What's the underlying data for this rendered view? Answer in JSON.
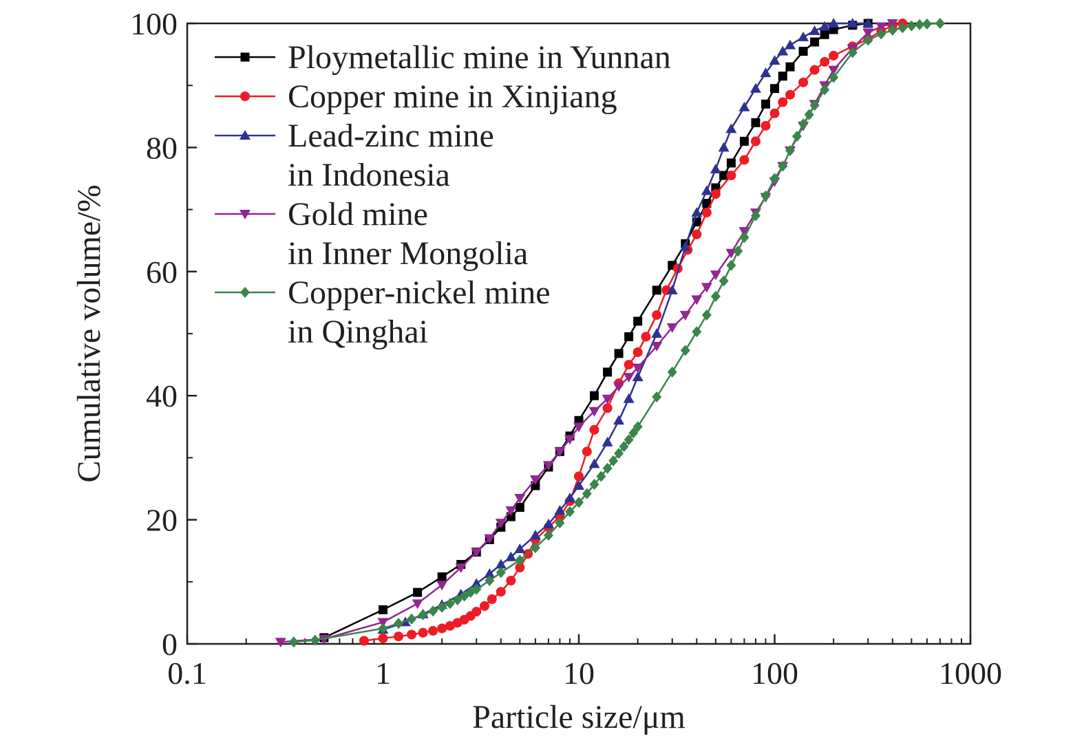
{
  "chart_data": {
    "type": "line",
    "title": "",
    "xlabel": "Particle size/μm",
    "ylabel": "Cumulative volume/%",
    "xscale": "log",
    "xlim": [
      0.1,
      1000
    ],
    "ylim": [
      0,
      100
    ],
    "xticks": [
      0.1,
      1,
      10,
      100,
      1000
    ],
    "xtick_labels": [
      "0.1",
      "1",
      "10",
      "100",
      "1000"
    ],
    "yticks": [
      0,
      20,
      40,
      60,
      80,
      100
    ],
    "ytick_labels": [
      "0",
      "20",
      "40",
      "60",
      "80",
      "100"
    ],
    "grid": false,
    "legend_position": "top-left",
    "series": [
      {
        "name": "Ploymetallic mine in Yunnan",
        "legend_lines": [
          "Ploymetallic mine in Yunnan"
        ],
        "color": "#000000",
        "marker": "square",
        "points": [
          [
            0.5,
            1.0
          ],
          [
            1.0,
            5.5
          ],
          [
            1.5,
            8.3
          ],
          [
            2.0,
            10.8
          ],
          [
            2.5,
            12.8
          ],
          [
            3.0,
            14.8
          ],
          [
            3.5,
            16.8
          ],
          [
            4.0,
            18.8
          ],
          [
            4.5,
            20.5
          ],
          [
            5.0,
            22.0
          ],
          [
            6.0,
            25.5
          ],
          [
            7.0,
            28.5
          ],
          [
            8.0,
            31.0
          ],
          [
            9.0,
            33.5
          ],
          [
            10.0,
            36.0
          ],
          [
            12.0,
            40.0
          ],
          [
            14.0,
            43.8
          ],
          [
            16.0,
            46.8
          ],
          [
            18.0,
            49.5
          ],
          [
            20.0,
            52.0
          ],
          [
            25.0,
            57.0
          ],
          [
            30.0,
            61.0
          ],
          [
            35.0,
            64.5
          ],
          [
            40.0,
            68.0
          ],
          [
            45.0,
            71.0
          ],
          [
            50.0,
            73.5
          ],
          [
            55.0,
            75.5
          ],
          [
            60.0,
            77.5
          ],
          [
            70.0,
            81.0
          ],
          [
            80.0,
            84.0
          ],
          [
            90.0,
            87.0
          ],
          [
            100.0,
            89.5
          ],
          [
            110.0,
            91.5
          ],
          [
            120.0,
            93.0
          ],
          [
            140.0,
            95.5
          ],
          [
            160.0,
            97.0
          ],
          [
            180.0,
            98.2
          ],
          [
            200.0,
            99.0
          ],
          [
            250.0,
            99.7
          ],
          [
            300.0,
            100.0
          ]
        ]
      },
      {
        "name": "Copper mine in Xinjiang",
        "legend_lines": [
          "Copper mine in Xinjiang"
        ],
        "color": "#ed1c24",
        "marker": "circle",
        "points": [
          [
            0.8,
            0.5
          ],
          [
            1.0,
            0.9
          ],
          [
            1.2,
            1.2
          ],
          [
            1.4,
            1.5
          ],
          [
            1.6,
            1.8
          ],
          [
            1.8,
            2.1
          ],
          [
            2.0,
            2.5
          ],
          [
            2.2,
            2.9
          ],
          [
            2.4,
            3.4
          ],
          [
            2.6,
            3.9
          ],
          [
            2.8,
            4.5
          ],
          [
            3.0,
            5.2
          ],
          [
            3.3,
            6.1
          ],
          [
            3.6,
            7.2
          ],
          [
            4.0,
            8.4
          ],
          [
            4.5,
            10.2
          ],
          [
            5.0,
            12.3
          ],
          [
            5.5,
            14.5
          ],
          [
            6.0,
            16.8
          ],
          [
            7.0,
            18.8
          ],
          [
            8.0,
            20.5
          ],
          [
            9.0,
            23.0
          ],
          [
            10.0,
            27.0
          ],
          [
            11.0,
            31.0
          ],
          [
            12.0,
            34.5
          ],
          [
            14.0,
            38.0
          ],
          [
            16.0,
            42.0
          ],
          [
            18.0,
            45.0
          ],
          [
            20.0,
            47.0
          ],
          [
            22.0,
            49.5
          ],
          [
            25.0,
            53.0
          ],
          [
            28.0,
            57.0
          ],
          [
            32.0,
            60.5
          ],
          [
            36.0,
            63.5
          ],
          [
            40.0,
            66.0
          ],
          [
            45.0,
            69.5
          ],
          [
            50.0,
            72.5
          ],
          [
            60.0,
            75.5
          ],
          [
            70.0,
            78.0
          ],
          [
            80.0,
            81.0
          ],
          [
            90.0,
            83.5
          ],
          [
            100.0,
            85.5
          ],
          [
            110.0,
            87.3
          ],
          [
            120.0,
            88.5
          ],
          [
            140.0,
            90.5
          ],
          [
            160.0,
            92.5
          ],
          [
            180.0,
            93.8
          ],
          [
            200.0,
            94.8
          ],
          [
            250.0,
            96.3
          ],
          [
            300.0,
            97.5
          ],
          [
            350.0,
            98.8
          ],
          [
            400.0,
            99.6
          ],
          [
            450.0,
            100.0
          ]
        ]
      },
      {
        "name": "Lead-zinc mine in Indonesia",
        "legend_lines": [
          "Lead-zinc mine",
          "in Indonesia"
        ],
        "color": "#2e3192",
        "marker": "triangle-up",
        "points": [
          [
            1.0,
            2.3
          ],
          [
            1.3,
            3.5
          ],
          [
            1.6,
            4.8
          ],
          [
            2.0,
            6.3
          ],
          [
            2.5,
            8.0
          ],
          [
            3.0,
            9.7
          ],
          [
            3.5,
            11.3
          ],
          [
            4.0,
            12.8
          ],
          [
            4.5,
            14.0
          ],
          [
            5.0,
            15.3
          ],
          [
            6.0,
            17.5
          ],
          [
            7.0,
            19.3
          ],
          [
            8.0,
            21.5
          ],
          [
            9.0,
            23.5
          ],
          [
            10.0,
            25.5
          ],
          [
            12.0,
            29.0
          ],
          [
            14.0,
            32.5
          ],
          [
            16.0,
            36.0
          ],
          [
            18.0,
            39.5
          ],
          [
            20.0,
            43.0
          ],
          [
            25.0,
            50.0
          ],
          [
            30.0,
            57.0
          ],
          [
            35.0,
            64.0
          ],
          [
            40.0,
            69.5
          ],
          [
            45.0,
            73.0
          ],
          [
            50.0,
            76.5
          ],
          [
            55.0,
            80.0
          ],
          [
            60.0,
            83.0
          ],
          [
            70.0,
            86.5
          ],
          [
            80.0,
            89.5
          ],
          [
            90.0,
            92.0
          ],
          [
            100.0,
            94.0
          ],
          [
            110.0,
            95.5
          ],
          [
            120.0,
            96.5
          ],
          [
            140.0,
            97.8
          ],
          [
            160.0,
            98.8
          ],
          [
            180.0,
            99.5
          ],
          [
            200.0,
            100.0
          ],
          [
            250.0,
            100.0
          ],
          [
            300.0,
            100.0
          ]
        ]
      },
      {
        "name": "Gold mine in Inner Mongolia",
        "legend_lines": [
          "Gold mine",
          "in Inner Mongolia"
        ],
        "color": "#92278f",
        "marker": "triangle-down",
        "points": [
          [
            0.3,
            0.3
          ],
          [
            0.5,
            0.8
          ],
          [
            1.0,
            3.5
          ],
          [
            1.5,
            6.5
          ],
          [
            2.0,
            9.5
          ],
          [
            2.5,
            12.3
          ],
          [
            3.0,
            14.8
          ],
          [
            3.5,
            17.0
          ],
          [
            4.0,
            19.5
          ],
          [
            4.5,
            21.5
          ],
          [
            5.0,
            23.5
          ],
          [
            6.0,
            26.5
          ],
          [
            7.0,
            28.8
          ],
          [
            8.0,
            31.0
          ],
          [
            9.0,
            33.0
          ],
          [
            10.0,
            35.0
          ],
          [
            12.0,
            37.5
          ],
          [
            14.0,
            39.5
          ],
          [
            16.0,
            41.5
          ],
          [
            18.0,
            43.0
          ],
          [
            20.0,
            44.5
          ],
          [
            25.0,
            48.0
          ],
          [
            30.0,
            51.0
          ],
          [
            35.0,
            53.0
          ],
          [
            40.0,
            55.5
          ],
          [
            45.0,
            57.5
          ],
          [
            50.0,
            59.5
          ],
          [
            60.0,
            63.0
          ],
          [
            70.0,
            66.5
          ],
          [
            80.0,
            69.5
          ],
          [
            90.0,
            72.0
          ],
          [
            100.0,
            74.5
          ],
          [
            110.0,
            77.0
          ],
          [
            120.0,
            79.5
          ],
          [
            140.0,
            83.5
          ],
          [
            160.0,
            87.0
          ],
          [
            180.0,
            90.0
          ],
          [
            200.0,
            92.5
          ],
          [
            250.0,
            96.0
          ],
          [
            300.0,
            98.5
          ],
          [
            350.0,
            99.5
          ],
          [
            400.0,
            100.0
          ]
        ]
      },
      {
        "name": "Copper-nickel mine in Qinghai",
        "legend_lines": [
          "Copper-nickel mine",
          "in Qinghai"
        ],
        "color": "#39854a",
        "marker": "diamond",
        "points": [
          [
            0.35,
            0.3
          ],
          [
            0.45,
            0.6
          ],
          [
            1.0,
            2.5
          ],
          [
            1.2,
            3.3
          ],
          [
            1.4,
            4.0
          ],
          [
            1.6,
            4.7
          ],
          [
            1.8,
            5.3
          ],
          [
            2.0,
            5.9
          ],
          [
            2.2,
            6.5
          ],
          [
            2.4,
            7.1
          ],
          [
            2.6,
            7.7
          ],
          [
            2.8,
            8.3
          ],
          [
            3.0,
            8.8
          ],
          [
            3.5,
            10.2
          ],
          [
            4.0,
            11.5
          ],
          [
            5.0,
            13.5
          ],
          [
            6.0,
            15.5
          ],
          [
            7.0,
            17.5
          ],
          [
            8.0,
            19.5
          ],
          [
            9.0,
            21.3
          ],
          [
            10.0,
            22.8
          ],
          [
            11.0,
            24.2
          ],
          [
            12.0,
            25.7
          ],
          [
            13.0,
            27.0
          ],
          [
            14.0,
            28.3
          ],
          [
            15.0,
            29.5
          ],
          [
            16.0,
            30.7
          ],
          [
            17.0,
            31.8
          ],
          [
            18.0,
            32.9
          ],
          [
            19.0,
            34.0
          ],
          [
            20.0,
            35.0
          ],
          [
            25.0,
            39.8
          ],
          [
            30.0,
            43.8
          ],
          [
            35.0,
            47.3
          ],
          [
            40.0,
            50.3
          ],
          [
            45.0,
            53.0
          ],
          [
            50.0,
            56.0
          ],
          [
            55.0,
            58.5
          ],
          [
            60.0,
            61.0
          ],
          [
            65.0,
            63.3
          ],
          [
            70.0,
            65.5
          ],
          [
            80.0,
            69.0
          ],
          [
            90.0,
            72.2
          ],
          [
            100.0,
            75.0
          ],
          [
            110.0,
            77.0
          ],
          [
            120.0,
            79.5
          ],
          [
            130.0,
            81.8
          ],
          [
            140.0,
            83.8
          ],
          [
            150.0,
            85.3
          ],
          [
            160.0,
            86.8
          ],
          [
            180.0,
            89.3
          ],
          [
            200.0,
            91.3
          ],
          [
            250.0,
            95.3
          ],
          [
            300.0,
            97.3
          ],
          [
            350.0,
            98.3
          ],
          [
            400.0,
            98.9
          ],
          [
            450.0,
            99.3
          ],
          [
            500.0,
            99.6
          ],
          [
            550.0,
            99.8
          ],
          [
            600.0,
            99.9
          ],
          [
            700.0,
            100.0
          ]
        ]
      }
    ]
  }
}
